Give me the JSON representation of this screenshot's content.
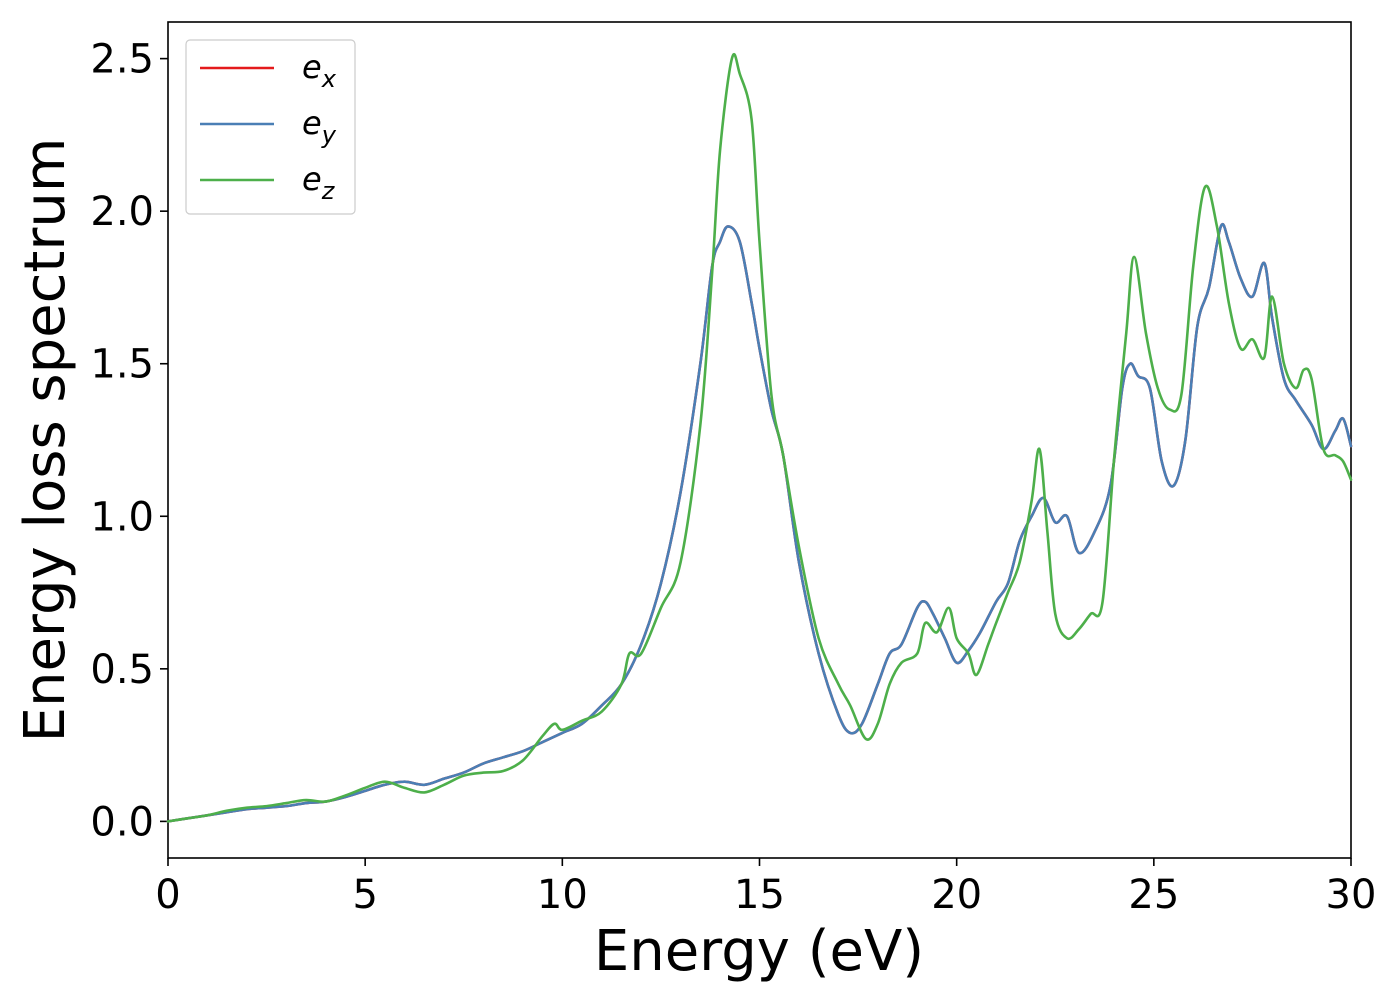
{
  "chart_data": {
    "type": "line",
    "xlabel": "Energy (eV)",
    "ylabel": "Energy loss spectrum",
    "xlim": [
      0,
      30
    ],
    "ylim": [
      -0.12,
      2.62
    ],
    "xticks": [
      0,
      5,
      10,
      15,
      20,
      25,
      30
    ],
    "yticks": [
      0.0,
      0.5,
      1.0,
      1.5,
      2.0,
      2.5
    ],
    "xtick_labels": [
      "0",
      "5",
      "10",
      "15",
      "20",
      "25",
      "30"
    ],
    "ytick_labels": [
      "0.0",
      "0.5",
      "1.0",
      "1.5",
      "2.0",
      "2.5"
    ],
    "grid": false,
    "legend_position": "top-left",
    "series": [
      {
        "name": "e_x",
        "base": "e",
        "sub": "x",
        "color": "#e41a1c",
        "x": [
          0,
          0.5,
          1,
          1.5,
          2,
          2.5,
          3,
          3.5,
          4,
          4.5,
          5,
          5.5,
          6,
          6.5,
          7,
          7.5,
          8,
          8.5,
          9,
          9.5,
          10,
          10.5,
          11,
          11.5,
          12,
          12.5,
          13,
          13.5,
          13.8,
          14,
          14.2,
          14.5,
          14.8,
          15,
          15.3,
          15.6,
          16,
          16.5,
          17,
          17.3,
          17.6,
          18,
          18.3,
          18.6,
          19,
          19.2,
          19.4,
          19.7,
          20,
          20.3,
          20.6,
          21,
          21.3,
          21.6,
          21.9,
          22.2,
          22.5,
          22.8,
          23.1,
          23.5,
          23.9,
          24.2,
          24.4,
          24.6,
          24.9,
          25.2,
          25.5,
          25.8,
          26.1,
          26.4,
          26.7,
          26.9,
          27.2,
          27.5,
          27.8,
          28,
          28.3,
          28.6,
          29,
          29.3,
          29.6,
          29.8,
          30
        ],
        "y": [
          0,
          0.01,
          0.02,
          0.03,
          0.04,
          0.045,
          0.05,
          0.06,
          0.065,
          0.08,
          0.1,
          0.12,
          0.13,
          0.12,
          0.14,
          0.16,
          0.19,
          0.21,
          0.23,
          0.26,
          0.29,
          0.32,
          0.38,
          0.45,
          0.58,
          0.78,
          1.08,
          1.5,
          1.82,
          1.9,
          1.95,
          1.9,
          1.7,
          1.55,
          1.35,
          1.2,
          0.85,
          0.55,
          0.35,
          0.29,
          0.32,
          0.45,
          0.55,
          0.58,
          0.7,
          0.72,
          0.68,
          0.6,
          0.52,
          0.56,
          0.62,
          0.72,
          0.78,
          0.92,
          1.0,
          1.06,
          0.98,
          1.0,
          0.88,
          0.95,
          1.1,
          1.42,
          1.5,
          1.46,
          1.42,
          1.18,
          1.1,
          1.25,
          1.62,
          1.75,
          1.95,
          1.9,
          1.78,
          1.72,
          1.83,
          1.65,
          1.45,
          1.38,
          1.3,
          1.22,
          1.28,
          1.32,
          1.23
        ]
      },
      {
        "name": "e_y",
        "base": "e",
        "sub": "y",
        "color": "#4a7fb5",
        "x": [
          0,
          0.5,
          1,
          1.5,
          2,
          2.5,
          3,
          3.5,
          4,
          4.5,
          5,
          5.5,
          6,
          6.5,
          7,
          7.5,
          8,
          8.5,
          9,
          9.5,
          10,
          10.5,
          11,
          11.5,
          12,
          12.5,
          13,
          13.5,
          13.8,
          14,
          14.2,
          14.5,
          14.8,
          15,
          15.3,
          15.6,
          16,
          16.5,
          17,
          17.3,
          17.6,
          18,
          18.3,
          18.6,
          19,
          19.2,
          19.4,
          19.7,
          20,
          20.3,
          20.6,
          21,
          21.3,
          21.6,
          21.9,
          22.2,
          22.5,
          22.8,
          23.1,
          23.5,
          23.9,
          24.2,
          24.4,
          24.6,
          24.9,
          25.2,
          25.5,
          25.8,
          26.1,
          26.4,
          26.7,
          26.9,
          27.2,
          27.5,
          27.8,
          28,
          28.3,
          28.6,
          29,
          29.3,
          29.6,
          29.8,
          30
        ],
        "y": [
          0,
          0.01,
          0.02,
          0.03,
          0.04,
          0.045,
          0.05,
          0.06,
          0.065,
          0.08,
          0.1,
          0.12,
          0.13,
          0.12,
          0.14,
          0.16,
          0.19,
          0.21,
          0.23,
          0.26,
          0.29,
          0.32,
          0.38,
          0.45,
          0.58,
          0.78,
          1.08,
          1.5,
          1.82,
          1.9,
          1.95,
          1.9,
          1.7,
          1.55,
          1.35,
          1.2,
          0.85,
          0.55,
          0.35,
          0.29,
          0.32,
          0.45,
          0.55,
          0.58,
          0.7,
          0.72,
          0.68,
          0.6,
          0.52,
          0.56,
          0.62,
          0.72,
          0.78,
          0.92,
          1.0,
          1.06,
          0.98,
          1.0,
          0.88,
          0.95,
          1.1,
          1.42,
          1.5,
          1.46,
          1.42,
          1.18,
          1.1,
          1.25,
          1.62,
          1.75,
          1.95,
          1.9,
          1.78,
          1.72,
          1.83,
          1.65,
          1.45,
          1.38,
          1.3,
          1.22,
          1.28,
          1.32,
          1.23
        ]
      },
      {
        "name": "e_z",
        "base": "e",
        "sub": "z",
        "color": "#4daf4a",
        "x": [
          0,
          0.5,
          1,
          1.5,
          2,
          2.5,
          3,
          3.5,
          4,
          4.5,
          5,
          5.5,
          6,
          6.5,
          7,
          7.5,
          8,
          8.5,
          9,
          9.5,
          9.8,
          10,
          10.5,
          11,
          11.5,
          11.7,
          12,
          12.5,
          13,
          13.5,
          13.8,
          14,
          14.3,
          14.5,
          14.8,
          15,
          15.3,
          15.6,
          16,
          16.5,
          17,
          17.3,
          17.7,
          18,
          18.3,
          18.6,
          19,
          19.2,
          19.5,
          19.8,
          20,
          20.3,
          20.5,
          20.8,
          21,
          21.3,
          21.6,
          21.9,
          22.1,
          22.3,
          22.5,
          22.8,
          23.1,
          23.4,
          23.7,
          24,
          24.3,
          24.5,
          24.8,
          25.1,
          25.4,
          25.7,
          26,
          26.3,
          26.6,
          26.9,
          27.2,
          27.5,
          27.8,
          28,
          28.3,
          28.6,
          28.8,
          29,
          29.3,
          29.6,
          29.8,
          30
        ],
        "y": [
          0,
          0.01,
          0.02,
          0.035,
          0.045,
          0.05,
          0.06,
          0.07,
          0.065,
          0.085,
          0.11,
          0.13,
          0.11,
          0.095,
          0.12,
          0.15,
          0.16,
          0.165,
          0.2,
          0.28,
          0.32,
          0.3,
          0.33,
          0.36,
          0.45,
          0.55,
          0.55,
          0.7,
          0.85,
          1.3,
          1.8,
          2.2,
          2.5,
          2.45,
          2.3,
          1.9,
          1.4,
          1.2,
          0.9,
          0.6,
          0.45,
          0.38,
          0.27,
          0.32,
          0.45,
          0.52,
          0.55,
          0.65,
          0.62,
          0.7,
          0.6,
          0.55,
          0.48,
          0.58,
          0.65,
          0.75,
          0.85,
          1.05,
          1.22,
          0.95,
          0.68,
          0.6,
          0.63,
          0.68,
          0.72,
          1.2,
          1.6,
          1.85,
          1.6,
          1.42,
          1.35,
          1.4,
          1.82,
          2.08,
          1.95,
          1.7,
          1.55,
          1.58,
          1.52,
          1.72,
          1.5,
          1.42,
          1.48,
          1.45,
          1.22,
          1.2,
          1.18,
          1.12
        ]
      }
    ]
  }
}
